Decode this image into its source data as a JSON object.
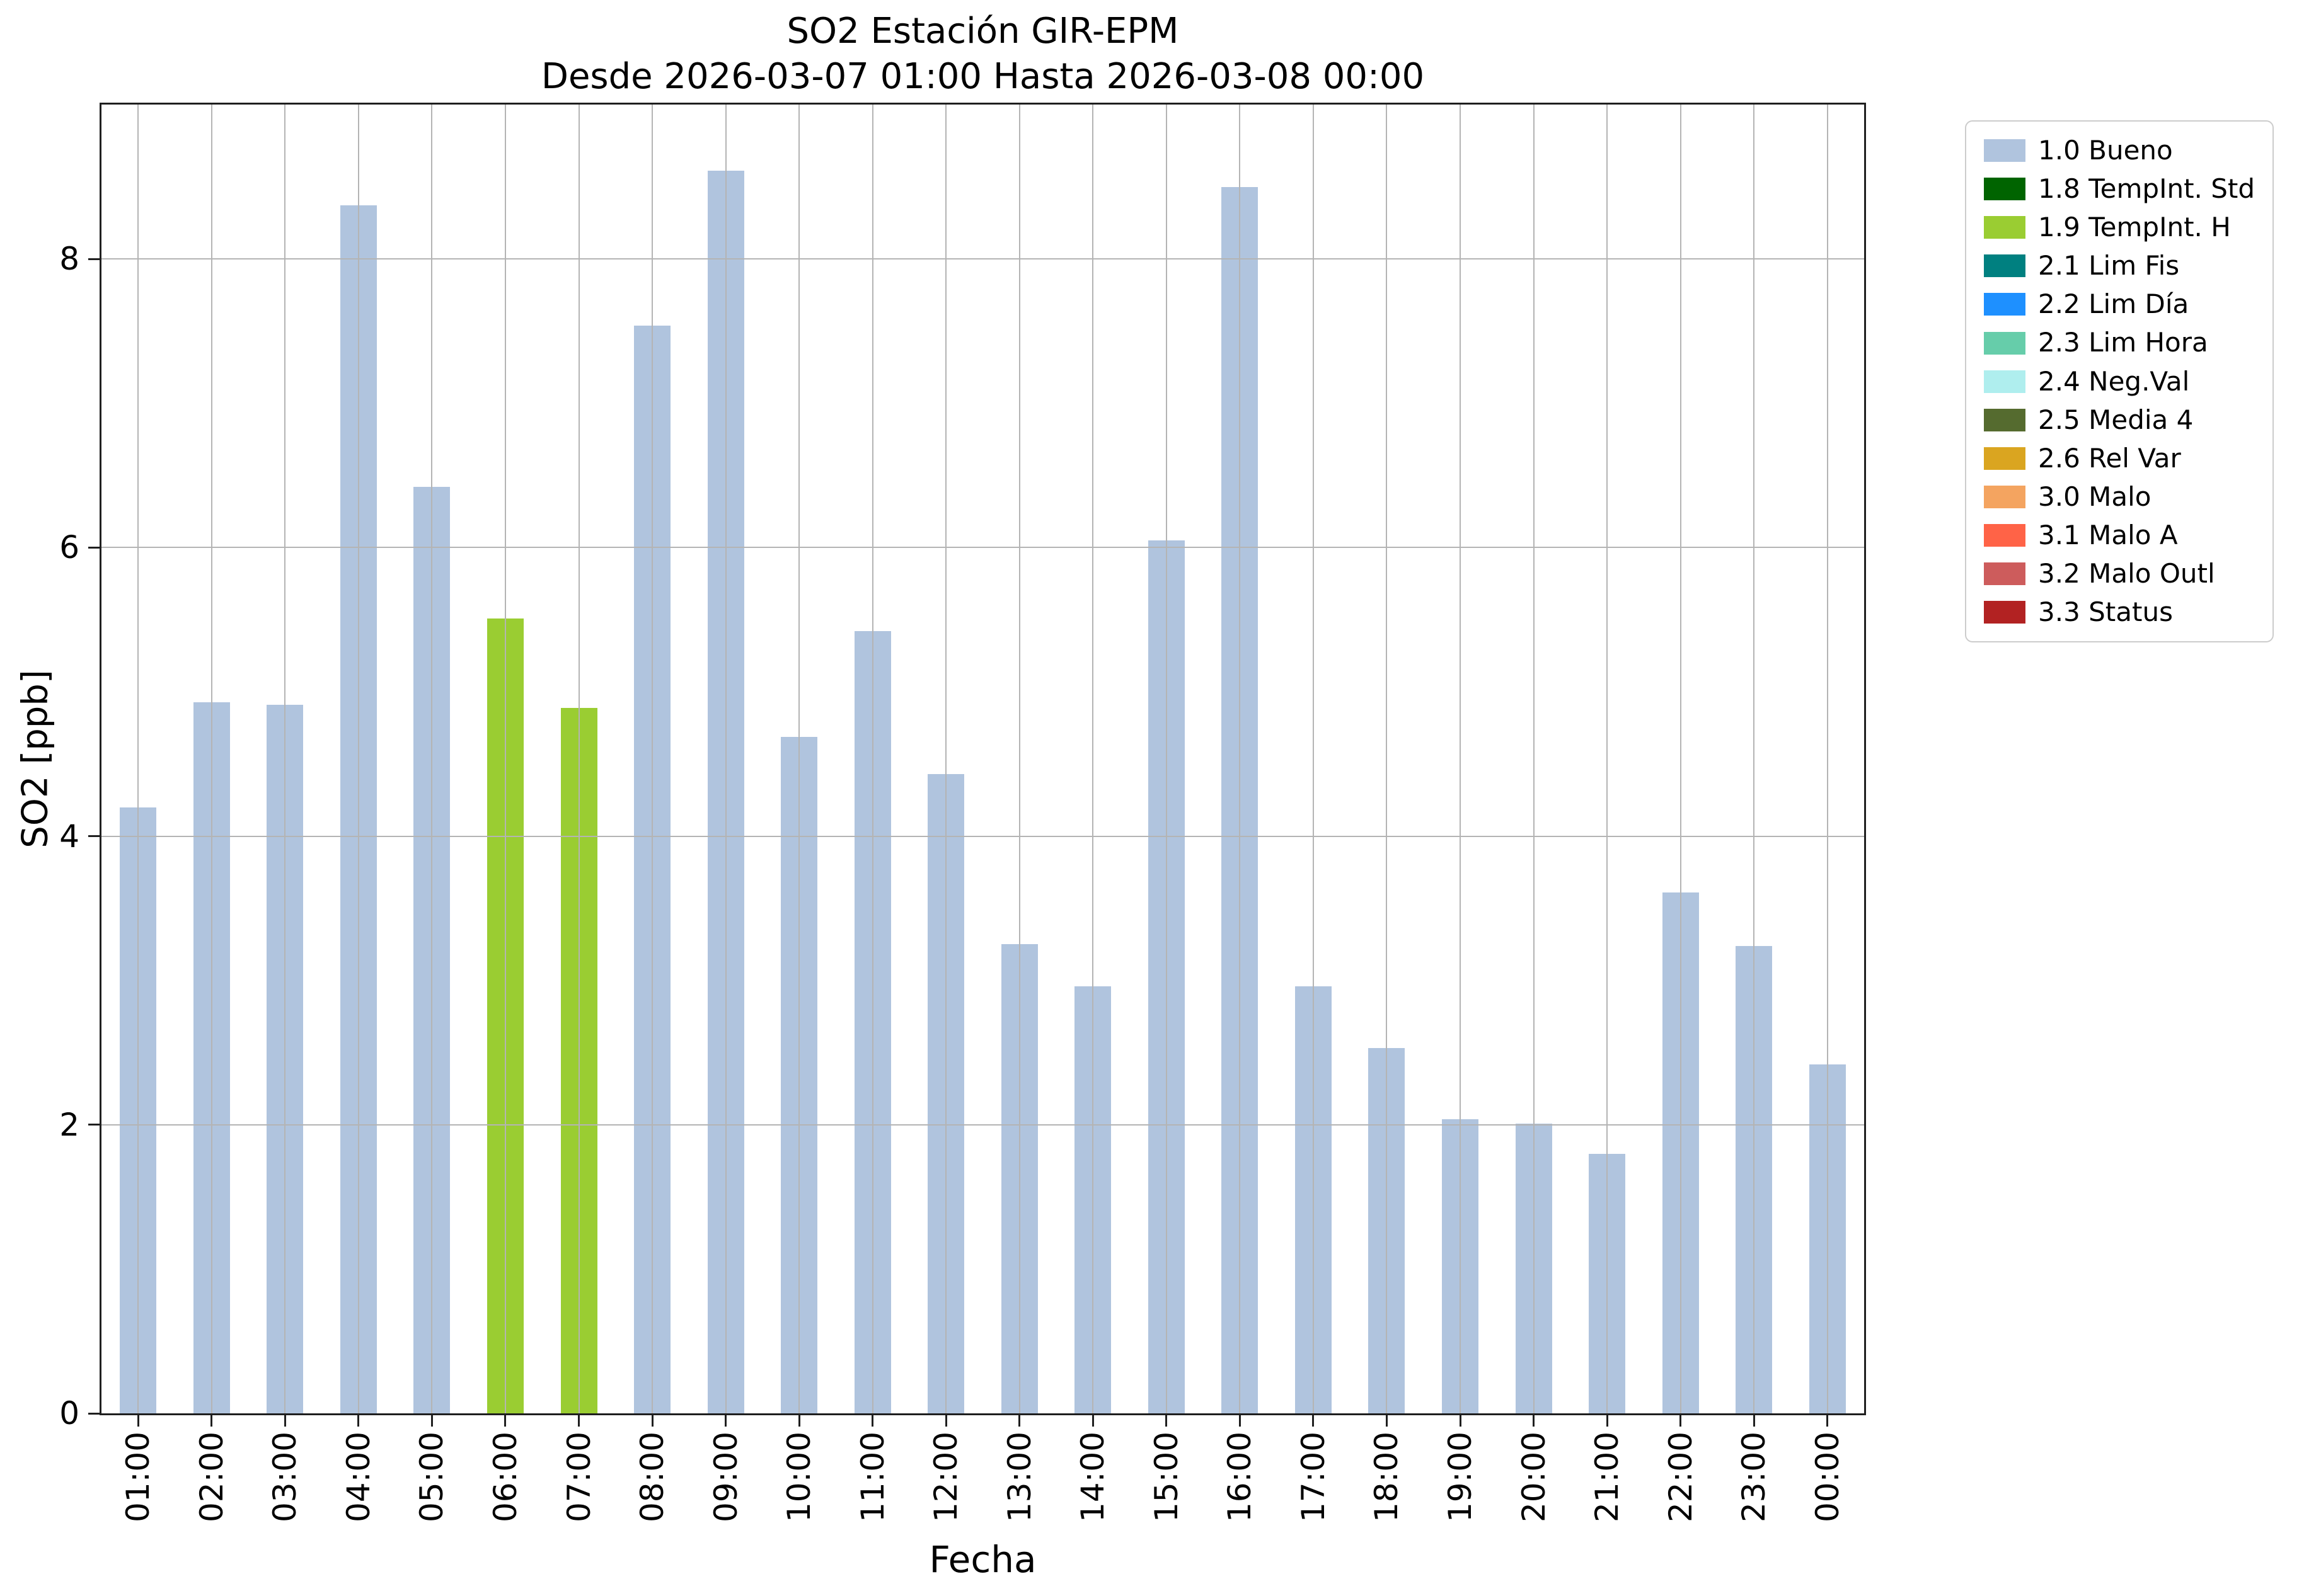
{
  "chart_data": {
    "type": "bar",
    "title": "SO2 Estación GIR-EPM",
    "subtitle": "Desde 2026-03-07 01:00 Hasta 2026-03-08 00:00",
    "xlabel": "Fecha",
    "ylabel": "SO2 [ppb]",
    "ylim": [
      0,
      9.07
    ],
    "yticks": [
      0,
      2,
      4,
      6,
      8
    ],
    "grid": true,
    "categories": [
      "01:00",
      "02:00",
      "03:00",
      "04:00",
      "05:00",
      "06:00",
      "07:00",
      "08:00",
      "09:00",
      "10:00",
      "11:00",
      "12:00",
      "13:00",
      "14:00",
      "15:00",
      "16:00",
      "17:00",
      "18:00",
      "19:00",
      "20:00",
      "21:00",
      "22:00",
      "23:00",
      "00:00"
    ],
    "values": [
      4.2,
      4.93,
      4.91,
      8.37,
      6.42,
      5.51,
      4.89,
      7.54,
      8.61,
      4.69,
      5.42,
      4.43,
      3.25,
      2.96,
      6.05,
      8.5,
      2.96,
      2.53,
      2.04,
      2.01,
      1.8,
      3.61,
      3.24,
      2.42
    ],
    "statuses": [
      "1.0 Bueno",
      "1.0 Bueno",
      "1.0 Bueno",
      "1.0 Bueno",
      "1.0 Bueno",
      "1.9 TempInt. H",
      "1.9 TempInt. H",
      "1.0 Bueno",
      "1.0 Bueno",
      "1.0 Bueno",
      "1.0 Bueno",
      "1.0 Bueno",
      "1.0 Bueno",
      "1.0 Bueno",
      "1.0 Bueno",
      "1.0 Bueno",
      "1.0 Bueno",
      "1.0 Bueno",
      "1.0 Bueno",
      "1.0 Bueno",
      "1.0 Bueno",
      "1.0 Bueno",
      "1.0 Bueno",
      "1.0 Bueno"
    ],
    "legend": {
      "position": "upper right outside",
      "entries": [
        {
          "label": "1.0 Bueno",
          "color": "#B0C4DE"
        },
        {
          "label": "1.8 TempInt. Std",
          "color": "#006400"
        },
        {
          "label": "1.9 TempInt. H",
          "color": "#9ACD32"
        },
        {
          "label": "2.1 Lim Fis",
          "color": "#008080"
        },
        {
          "label": "2.2 Lim Día",
          "color": "#1E90FF"
        },
        {
          "label": "2.3 Lim Hora",
          "color": "#66CDAA"
        },
        {
          "label": "2.4 Neg.Val",
          "color": "#AFEEEE"
        },
        {
          "label": "2.5 Media 4",
          "color": "#556B2F"
        },
        {
          "label": "2.6 Rel Var",
          "color": "#DAA520"
        },
        {
          "label": "3.0 Malo",
          "color": "#F4A460"
        },
        {
          "label": "3.1 Malo A",
          "color": "#FF6347"
        },
        {
          "label": "3.2 Malo Outl",
          "color": "#CD5C5C"
        },
        {
          "label": "3.3 Status",
          "color": "#B22222"
        }
      ]
    },
    "colors": {
      "grid": "#b4b4b4",
      "spine": "#1f1f1f",
      "background": "#ffffff"
    }
  }
}
